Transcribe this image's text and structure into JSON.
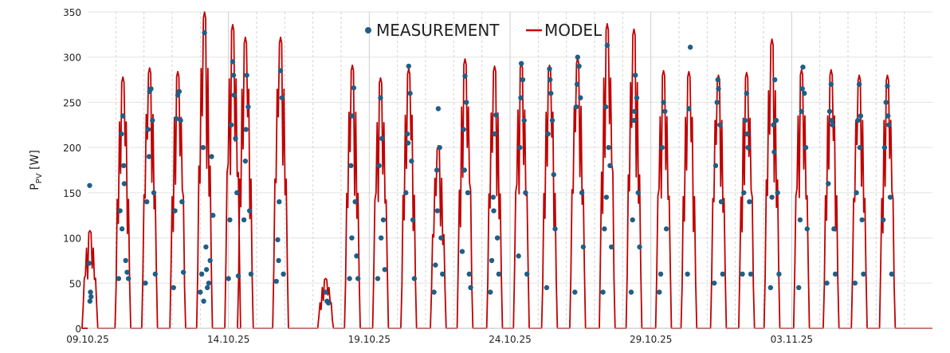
{
  "chart_data": {
    "type": "line",
    "title": "",
    "xlabel": "",
    "ylabel": {
      "main": "P",
      "sub": "PV",
      "unit": "[W]"
    },
    "ylim": [
      0,
      350
    ],
    "yticks": [
      0,
      50,
      100,
      150,
      200,
      250,
      300,
      350
    ],
    "xlim": [
      "09.10.25",
      "08.11.25"
    ],
    "xticks": [
      "09.10.25",
      "14.10.25",
      "19.10.25",
      "24.10.25",
      "29.10.25",
      "03.11.25"
    ],
    "grid": {
      "vertical_major": "solid",
      "vertical_daily": "dashed",
      "horizontal": "solid"
    },
    "legend": {
      "placement": "top-center"
    },
    "series": [
      {
        "name": "MEASUREMENT",
        "kind": "scatter",
        "color": "#1f5f86",
        "note_units": "x in days since 09.10.25",
        "points": [
          [
            0.07,
            158
          ],
          [
            0.05,
            72
          ],
          [
            0.1,
            40
          ],
          [
            0.12,
            35
          ],
          [
            0.08,
            30
          ],
          [
            1.1,
            55
          ],
          [
            1.15,
            130
          ],
          [
            1.2,
            215
          ],
          [
            1.25,
            235
          ],
          [
            1.3,
            160
          ],
          [
            1.35,
            75
          ],
          [
            1.4,
            62
          ],
          [
            1.22,
            110
          ],
          [
            1.28,
            180
          ],
          [
            1.45,
            55
          ],
          [
            2.05,
            50
          ],
          [
            2.1,
            140
          ],
          [
            2.15,
            220
          ],
          [
            2.2,
            262
          ],
          [
            2.25,
            265
          ],
          [
            2.3,
            230
          ],
          [
            2.35,
            150
          ],
          [
            2.4,
            60
          ],
          [
            2.18,
            190
          ],
          [
            3.05,
            45
          ],
          [
            3.1,
            130
          ],
          [
            3.15,
            232
          ],
          [
            3.2,
            258
          ],
          [
            3.25,
            262
          ],
          [
            3.3,
            230
          ],
          [
            3.35,
            140
          ],
          [
            3.4,
            62
          ],
          [
            4.0,
            40
          ],
          [
            4.05,
            60
          ],
          [
            4.1,
            200
          ],
          [
            4.15,
            327
          ],
          [
            4.2,
            90
          ],
          [
            4.25,
            45
          ],
          [
            4.3,
            50
          ],
          [
            4.35,
            75
          ],
          [
            4.4,
            190
          ],
          [
            4.45,
            125
          ],
          [
            4.12,
            30
          ],
          [
            4.22,
            65
          ],
          [
            5.0,
            55
          ],
          [
            5.05,
            120
          ],
          [
            5.1,
            225
          ],
          [
            5.15,
            295
          ],
          [
            5.2,
            258
          ],
          [
            5.25,
            210
          ],
          [
            5.3,
            150
          ],
          [
            5.35,
            58
          ],
          [
            5.18,
            280
          ],
          [
            5.55,
            120
          ],
          [
            5.6,
            185
          ],
          [
            5.65,
            280
          ],
          [
            5.7,
            245
          ],
          [
            5.75,
            130
          ],
          [
            5.8,
            60
          ],
          [
            5.62,
            220
          ],
          [
            6.7,
            52
          ],
          [
            6.75,
            98
          ],
          [
            6.8,
            140
          ],
          [
            6.85,
            285
          ],
          [
            6.9,
            255
          ],
          [
            6.95,
            60
          ],
          [
            6.78,
            75
          ],
          [
            8.45,
            40
          ],
          [
            8.5,
            30
          ],
          [
            8.55,
            28
          ],
          [
            9.3,
            55
          ],
          [
            9.35,
            180
          ],
          [
            9.4,
            235
          ],
          [
            9.45,
            266
          ],
          [
            9.5,
            140
          ],
          [
            9.55,
            80
          ],
          [
            9.6,
            55
          ],
          [
            9.38,
            100
          ],
          [
            10.3,
            55
          ],
          [
            10.35,
            180
          ],
          [
            10.4,
            255
          ],
          [
            10.45,
            210
          ],
          [
            10.5,
            120
          ],
          [
            10.55,
            65
          ],
          [
            10.42,
            100
          ],
          [
            11.3,
            150
          ],
          [
            11.35,
            215
          ],
          [
            11.4,
            290
          ],
          [
            11.45,
            260
          ],
          [
            11.5,
            185
          ],
          [
            11.55,
            120
          ],
          [
            11.6,
            55
          ],
          [
            11.38,
            205
          ],
          [
            12.3,
            40
          ],
          [
            12.35,
            70
          ],
          [
            12.4,
            175
          ],
          [
            12.45,
            243
          ],
          [
            12.5,
            200
          ],
          [
            12.55,
            100
          ],
          [
            12.6,
            60
          ],
          [
            12.42,
            130
          ],
          [
            13.3,
            85
          ],
          [
            13.35,
            220
          ],
          [
            13.4,
            279
          ],
          [
            13.45,
            250
          ],
          [
            13.5,
            150
          ],
          [
            13.55,
            60
          ],
          [
            13.6,
            45
          ],
          [
            13.38,
            175
          ],
          [
            14.3,
            40
          ],
          [
            14.35,
            75
          ],
          [
            14.4,
            145
          ],
          [
            14.45,
            215
          ],
          [
            14.5,
            236
          ],
          [
            14.55,
            100
          ],
          [
            14.6,
            60
          ],
          [
            14.42,
            130
          ],
          [
            15.3,
            80
          ],
          [
            15.35,
            200
          ],
          [
            15.4,
            293
          ],
          [
            15.45,
            275
          ],
          [
            15.5,
            230
          ],
          [
            15.55,
            150
          ],
          [
            15.6,
            60
          ],
          [
            15.38,
            255
          ],
          [
            16.3,
            45
          ],
          [
            16.35,
            215
          ],
          [
            16.4,
            287
          ],
          [
            16.45,
            260
          ],
          [
            16.5,
            230
          ],
          [
            16.55,
            170
          ],
          [
            16.6,
            110
          ],
          [
            16.42,
            275
          ],
          [
            17.3,
            40
          ],
          [
            17.35,
            245
          ],
          [
            17.4,
            300
          ],
          [
            17.45,
            290
          ],
          [
            17.5,
            255
          ],
          [
            17.55,
            150
          ],
          [
            17.6,
            90
          ],
          [
            17.38,
            270
          ],
          [
            18.3,
            40
          ],
          [
            18.35,
            110
          ],
          [
            18.4,
            245
          ],
          [
            18.45,
            313
          ],
          [
            18.5,
            200
          ],
          [
            18.55,
            180
          ],
          [
            18.6,
            90
          ],
          [
            18.42,
            145
          ],
          [
            19.3,
            40
          ],
          [
            19.35,
            120
          ],
          [
            19.4,
            230
          ],
          [
            19.45,
            280
          ],
          [
            19.5,
            255
          ],
          [
            19.55,
            150
          ],
          [
            19.6,
            90
          ],
          [
            19.42,
            240
          ],
          [
            20.3,
            40
          ],
          [
            20.35,
            60
          ],
          [
            20.4,
            200
          ],
          [
            20.45,
            250
          ],
          [
            20.5,
            240
          ],
          [
            20.55,
            110
          ],
          [
            21.3,
            60
          ],
          [
            21.35,
            243
          ],
          [
            21.4,
            311
          ],
          [
            22.25,
            50
          ],
          [
            22.3,
            180
          ],
          [
            22.35,
            250
          ],
          [
            22.4,
            265
          ],
          [
            22.45,
            225
          ],
          [
            22.5,
            140
          ],
          [
            22.55,
            60
          ],
          [
            22.38,
            275
          ],
          [
            23.25,
            60
          ],
          [
            23.3,
            150
          ],
          [
            23.35,
            230
          ],
          [
            23.4,
            260
          ],
          [
            23.45,
            200
          ],
          [
            23.5,
            140
          ],
          [
            23.55,
            60
          ],
          [
            23.42,
            215
          ],
          [
            24.25,
            45
          ],
          [
            24.3,
            145
          ],
          [
            24.35,
            225
          ],
          [
            24.4,
            275
          ],
          [
            24.45,
            230
          ],
          [
            24.5,
            150
          ],
          [
            24.55,
            60
          ],
          [
            24.38,
            195
          ],
          [
            25.25,
            45
          ],
          [
            25.3,
            120
          ],
          [
            25.35,
            240
          ],
          [
            25.4,
            289
          ],
          [
            25.45,
            260
          ],
          [
            25.5,
            200
          ],
          [
            25.55,
            110
          ],
          [
            25.38,
            265
          ],
          [
            26.25,
            50
          ],
          [
            26.3,
            160
          ],
          [
            26.35,
            240
          ],
          [
            26.4,
            270
          ],
          [
            26.45,
            225
          ],
          [
            26.5,
            110
          ],
          [
            26.55,
            60
          ],
          [
            26.42,
            230
          ],
          [
            27.25,
            50
          ],
          [
            27.3,
            150
          ],
          [
            27.35,
            230
          ],
          [
            27.4,
            270
          ],
          [
            27.45,
            235
          ],
          [
            27.5,
            120
          ],
          [
            27.55,
            60
          ],
          [
            27.42,
            200
          ],
          [
            28.25,
            120
          ],
          [
            28.3,
            200
          ],
          [
            28.35,
            250
          ],
          [
            28.4,
            268
          ],
          [
            28.45,
            225
          ],
          [
            28.5,
            145
          ],
          [
            28.55,
            60
          ],
          [
            28.42,
            235
          ]
        ]
      },
      {
        "name": "MODEL",
        "kind": "line",
        "color": "#c00000",
        "note_units": "daily peaks; x in days since 09.10.25",
        "peaks": [
          [
            0.08,
            108
          ],
          [
            1.25,
            278
          ],
          [
            2.2,
            288
          ],
          [
            3.2,
            284
          ],
          [
            4.15,
            350
          ],
          [
            5.15,
            336
          ],
          [
            5.6,
            322
          ],
          [
            6.85,
            322
          ],
          [
            8.45,
            55
          ],
          [
            9.4,
            291
          ],
          [
            10.4,
            277
          ],
          [
            11.4,
            287
          ],
          [
            12.45,
            202
          ],
          [
            13.4,
            298
          ],
          [
            14.45,
            290
          ],
          [
            15.4,
            294
          ],
          [
            16.4,
            291
          ],
          [
            17.4,
            299
          ],
          [
            18.45,
            337
          ],
          [
            19.4,
            331
          ],
          [
            20.45,
            285
          ],
          [
            21.35,
            284
          ],
          [
            22.4,
            280
          ],
          [
            23.4,
            283
          ],
          [
            24.3,
            320
          ],
          [
            25.35,
            286
          ],
          [
            26.4,
            286
          ],
          [
            27.4,
            280
          ],
          [
            28.4,
            280
          ]
        ]
      }
    ]
  }
}
